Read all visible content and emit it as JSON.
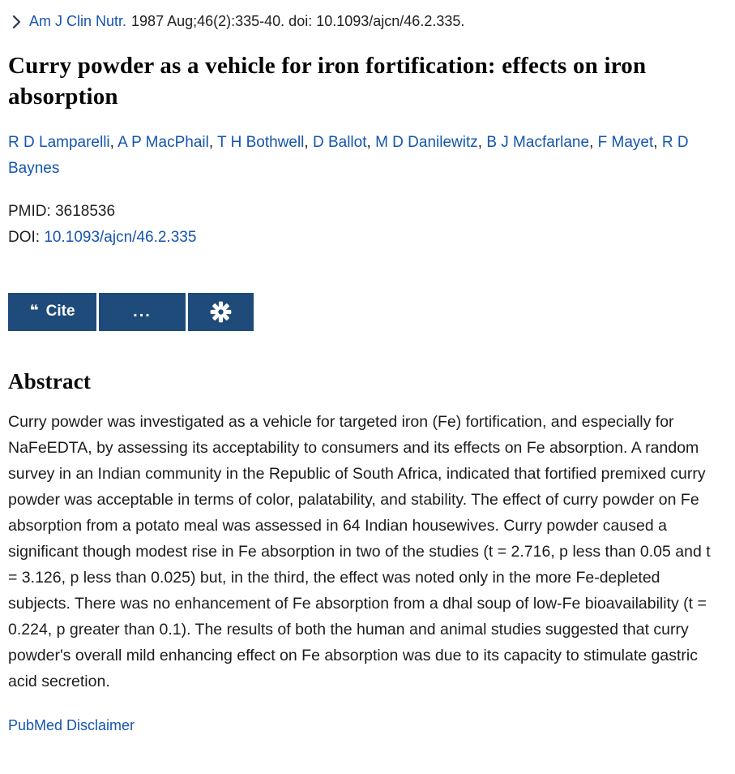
{
  "citation_bar": {
    "journal": "Am J Clin Nutr.",
    "details": "1987 Aug;46(2):335-40. doi: 10.1093/ajcn/46.2.335."
  },
  "title": "Curry powder as a vehicle for iron fortification: effects on iron absorption",
  "authors": [
    "R D Lamparelli",
    "A P MacPhail",
    "T H Bothwell",
    "D Ballot",
    "M D Danilewitz",
    "B J Macfarlane",
    "F Mayet",
    "R D Baynes"
  ],
  "identifiers": {
    "pmid_label": "PMID:",
    "pmid": "3618536",
    "doi_label": "DOI:",
    "doi": "10.1093/ajcn/46.2.335"
  },
  "actions": {
    "cite_icon": "❝",
    "cite_label": "Cite",
    "more_label": "...",
    "settings_icon_name": "gear-icon"
  },
  "abstract": {
    "heading": "Abstract",
    "text": "Curry powder was investigated as a vehicle for targeted iron (Fe) fortification, and especially for NaFeEDTA, by assessing its acceptability to consumers and its effects on Fe absorption. A random survey in an Indian community in the Republic of South Africa, indicated that fortified premixed curry powder was acceptable in terms of color, palatability, and stability. The effect of curry powder on Fe absorption from a potato meal was assessed in 64 Indian housewives. Curry powder caused a significant though modest rise in Fe absorption in two of the studies (t = 2.716, p less than 0.05 and t = 3.126, p less than 0.025) but, in the third, the effect was noted only in the more Fe-depleted subjects. There was no enhancement of Fe absorption from a dhal soup of low-Fe bioavailability (t = 0.224, p greater than 0.1). The results of both the human and animal studies suggested that curry powder's overall mild enhancing effect on Fe absorption was due to its capacity to stimulate gastric acid secretion."
  },
  "footer": {
    "disclaimer_link": "PubMed Disclaimer"
  },
  "colors": {
    "link_blue": "#1555ad",
    "button_navy": "#1e4b79",
    "text_dark": "#1f1f1f"
  }
}
